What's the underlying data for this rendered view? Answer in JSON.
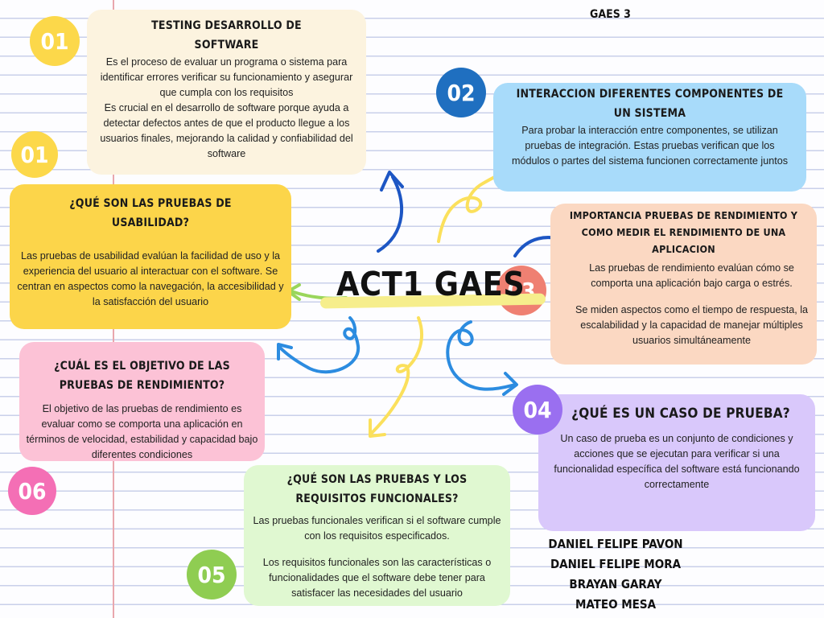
{
  "header": {
    "group": "GAES 3"
  },
  "center": {
    "title": "ACT1 GAES"
  },
  "cards": {
    "testing": {
      "badge": "01",
      "title": "Testing Desarrollo de Software",
      "paragraphs": [
        "Es el proceso de evaluar un programa o sistema para identificar errores verificar su funcionamiento y asegurar que cumpla con los requisitos",
        "Es crucial en el desarrollo de software porque ayuda a detectar defectos antes de que el producto llegue a los usuarios finales, mejorando la calidad y confiabilidad del software"
      ]
    },
    "interaccion": {
      "badge": "02",
      "title": "Interaccion diferentes componentes de un sistema",
      "paragraphs": [
        "Para probar la interacción entre componentes, se utilizan pruebas de integración. Estas pruebas verifican que los módulos o partes del sistema funcionen correctamente juntos"
      ]
    },
    "usabilidad": {
      "badge": "01",
      "title": "¿Qué son las pruebas de usabilidad?",
      "paragraphs": [
        "Las pruebas de usabilidad evalúan la facilidad de uso y la experiencia del usuario al interactuar con el software. Se centran en aspectos como la navegación, la accesibilidad y la satisfacción del usuario"
      ]
    },
    "importancia": {
      "badge": "03",
      "title": "Importancia pruebas de rendimiento y como medir el rendimiento de una aplicacion",
      "paragraphs": [
        "Las pruebas de rendimiento evalúan cómo se comporta una aplicación bajo carga o estrés.",
        "Se miden aspectos como el tiempo de respuesta, la escalabilidad y la capacidad de manejar múltiples usuarios simultáneamente"
      ]
    },
    "objetivo": {
      "badge": "06",
      "title": "¿Cuál es el objetivo de las pruebas de rendimiento?",
      "paragraphs": [
        "El objetivo de las pruebas de rendimiento es evaluar como se comporta una aplicación en términos de velocidad, estabilidad y capacidad bajo diferentes condiciones"
      ]
    },
    "caso": {
      "badge": "04",
      "title": "¿Qué es un caso de prueba?",
      "paragraphs": [
        "Un caso de prueba es un conjunto de condiciones y acciones que se ejecutan para verificar si una funcionalidad específica del software está funcionando correctamente"
      ]
    },
    "requisitos": {
      "badge": "05",
      "title": "¿Qué son las pruebas y los requisitos funcionales?",
      "paragraphs": [
        "Las pruebas funcionales verifican si el software cumple con los requisitos especificados.",
        "Los requisitos funcionales son las características o funcionalidades que el software debe tener para satisfacer las necesidades del usuario"
      ]
    }
  },
  "authors": [
    "DANIEL FELIPE PAVON",
    "DANIEL FELIPE MORA",
    "BRAYAN GARAY",
    "MATEO MESA"
  ],
  "colors": {
    "badge_yellow": "#fcd84a",
    "badge_blue": "#1f6fc0",
    "badge_salmon": "#ef8072",
    "badge_purple": "#9a6ff0",
    "badge_pink": "#f46fb5",
    "badge_green": "#8fcd52",
    "arrow_blue": "#2c8ce0",
    "arrow_dark_blue": "#1d56c4",
    "arrow_yellow": "#fbe05c",
    "arrow_green": "#9ad65b"
  }
}
